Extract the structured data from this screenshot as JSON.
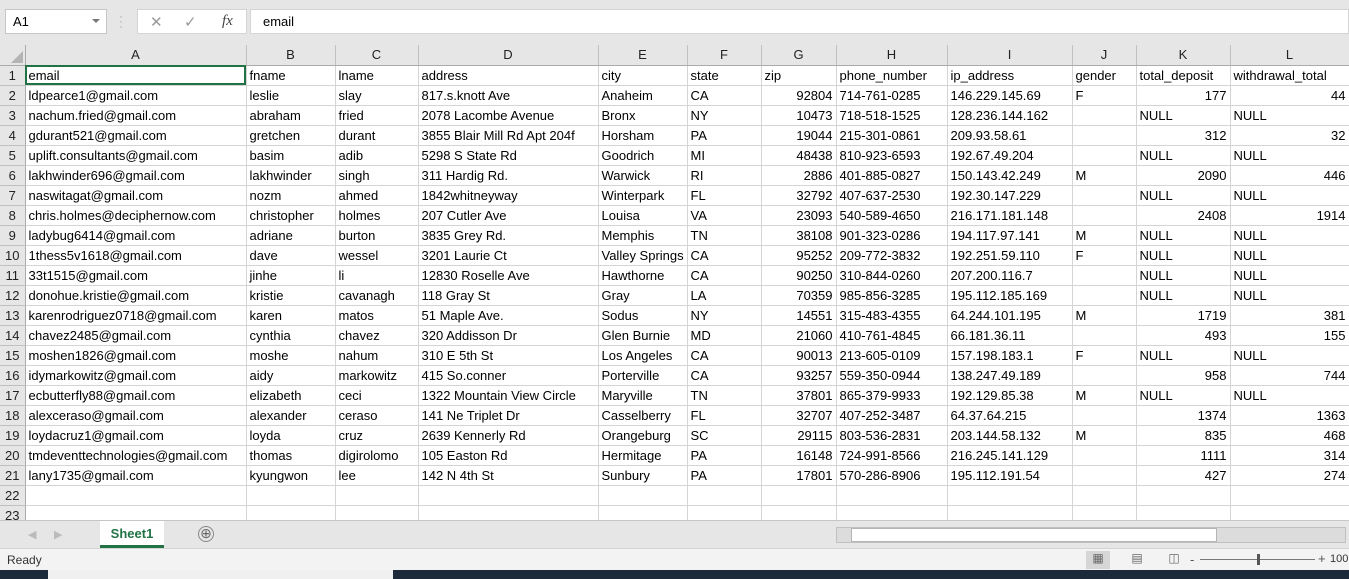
{
  "formula_bar": {
    "name_box": "A1",
    "cancel_icon": "✕",
    "enter_icon": "✓",
    "fx_label": "fx",
    "content": "email"
  },
  "columns": [
    "A",
    "B",
    "C",
    "D",
    "E",
    "F",
    "G",
    "H",
    "I",
    "J",
    "K",
    "L"
  ],
  "row_numbers": [
    1,
    2,
    3,
    4,
    5,
    6,
    7,
    8,
    9,
    10,
    11,
    12,
    13,
    14,
    15,
    16,
    17,
    18,
    19,
    20,
    21,
    22,
    23
  ],
  "rows": [
    [
      "email",
      "fname",
      "lname",
      "address",
      "city",
      "state",
      "zip",
      "phone_number",
      "ip_address",
      "gender",
      "total_deposit",
      "withdrawal_total"
    ],
    [
      "ldpearce1@gmail.com",
      "leslie",
      "slay",
      "817.s.knott Ave",
      "Anaheim",
      "CA",
      92804,
      "714-761-0285",
      "146.229.145.69",
      "F",
      177,
      44
    ],
    [
      "nachum.fried@gmail.com",
      "abraham",
      "fried",
      "2078 Lacombe Avenue",
      "Bronx",
      "NY",
      10473,
      "718-518-1525",
      "128.236.144.162",
      "",
      "NULL",
      "NULL"
    ],
    [
      "gdurant521@gmail.com",
      "gretchen",
      "durant",
      "3855 Blair Mill Rd Apt 204f",
      "Horsham",
      "PA",
      19044,
      "215-301-0861",
      "209.93.58.61",
      "",
      312,
      32
    ],
    [
      "uplift.consultants@gmail.com",
      "basim",
      "adib",
      "5298 S State Rd",
      "Goodrich",
      "MI",
      48438,
      "810-923-6593",
      "192.67.49.204",
      "",
      "NULL",
      "NULL"
    ],
    [
      "lakhwinder696@gmail.com",
      "lakhwinder",
      "singh",
      "311 Hardig Rd.",
      "Warwick",
      "RI",
      2886,
      "401-885-0827",
      "150.143.42.249",
      "M",
      2090,
      446
    ],
    [
      "naswitagat@gmail.com",
      "nozm",
      "ahmed",
      "1842whitneyway",
      "Winterpark",
      "FL",
      32792,
      "407-637-2530",
      "192.30.147.229",
      "",
      "NULL",
      "NULL"
    ],
    [
      "chris.holmes@deciphernow.com",
      "christopher",
      "holmes",
      "207 Cutler Ave",
      "Louisa",
      "VA",
      23093,
      "540-589-4650",
      "216.171.181.148",
      "",
      2408,
      1914
    ],
    [
      "ladybug6414@gmail.com",
      "adriane",
      "burton",
      "3835 Grey Rd.",
      "Memphis",
      "TN",
      38108,
      "901-323-0286",
      "194.117.97.141",
      "M",
      "NULL",
      "NULL"
    ],
    [
      "1thess5v1618@gmail.com",
      "dave",
      "wessel",
      "3201 Laurie Ct",
      "Valley Springs",
      "CA",
      95252,
      "209-772-3832",
      "192.251.59.110",
      "F",
      "NULL",
      "NULL"
    ],
    [
      "33t1515@gmail.com",
      "jinhe",
      "li",
      "12830 Roselle Ave",
      "Hawthorne",
      "CA",
      90250,
      "310-844-0260",
      "207.200.116.7",
      "",
      "NULL",
      "NULL"
    ],
    [
      "donohue.kristie@gmail.com",
      "kristie",
      "cavanagh",
      "118 Gray St",
      "Gray",
      "LA",
      70359,
      "985-856-3285",
      "195.112.185.169",
      "",
      "NULL",
      "NULL"
    ],
    [
      "karenrodriguez0718@gmail.com",
      "karen",
      "matos",
      "51 Maple Ave.",
      "Sodus",
      "NY",
      14551,
      "315-483-4355",
      "64.244.101.195",
      "M",
      1719,
      381
    ],
    [
      "chavez2485@gmail.com",
      "cynthia",
      "chavez",
      "320 Addisson Dr",
      "Glen Burnie",
      "MD",
      21060,
      "410-761-4845",
      "66.181.36.11",
      "",
      493,
      155
    ],
    [
      "moshen1826@gmail.com",
      "moshe",
      "nahum",
      "310 E 5th St",
      "Los Angeles",
      "CA",
      90013,
      "213-605-0109",
      "157.198.183.1",
      "F",
      "NULL",
      "NULL"
    ],
    [
      "idymarkowitz@gmail.com",
      "aidy",
      "markowitz",
      "415 So.conner",
      "Porterville",
      "CA",
      93257,
      "559-350-0944",
      "138.247.49.189",
      "",
      958,
      744
    ],
    [
      "ecbutterfly88@gmail.com",
      "elizabeth",
      "ceci",
      "1322 Mountain View Circle",
      "Maryville",
      "TN",
      37801,
      "865-379-9933",
      "192.129.85.38",
      "M",
      "NULL",
      "NULL"
    ],
    [
      "alexceraso@gmail.com",
      "alexander",
      "ceraso",
      "141 Ne Triplet Dr",
      "Casselberry",
      "FL",
      32707,
      "407-252-3487",
      "64.37.64.215",
      "",
      1374,
      1363
    ],
    [
      "loydacruz1@gmail.com",
      "loyda",
      "cruz",
      "2639 Kennerly Rd",
      "Orangeburg",
      "SC",
      29115,
      "803-536-2831",
      "203.144.58.132",
      "M",
      835,
      468
    ],
    [
      "tmdeventtechnologies@gmail.com",
      "thomas",
      "digirolomo",
      "105 Easton Rd",
      "Hermitage",
      "PA",
      16148,
      "724-991-8566",
      "216.245.141.129",
      "",
      1111,
      314
    ],
    [
      "lany1735@gmail.com",
      "kyungwon",
      "lee",
      "142 N 4th St",
      "Sunbury",
      "PA",
      17801,
      "570-286-8906",
      "195.112.191.54",
      "",
      427,
      274
    ],
    [
      "",
      "",
      "",
      "",
      "",
      "",
      "",
      "",
      "",
      "",
      "",
      ""
    ],
    [
      "",
      "",
      "",
      "",
      "",
      "",
      "",
      "",
      "",
      "",
      "",
      ""
    ]
  ],
  "sheet_tabs": [
    {
      "label": "Sheet1",
      "active": true
    }
  ],
  "add_sheet_icon": "⊕",
  "status": {
    "text": "Ready",
    "zoom": "100"
  },
  "accent_color": "#217346"
}
